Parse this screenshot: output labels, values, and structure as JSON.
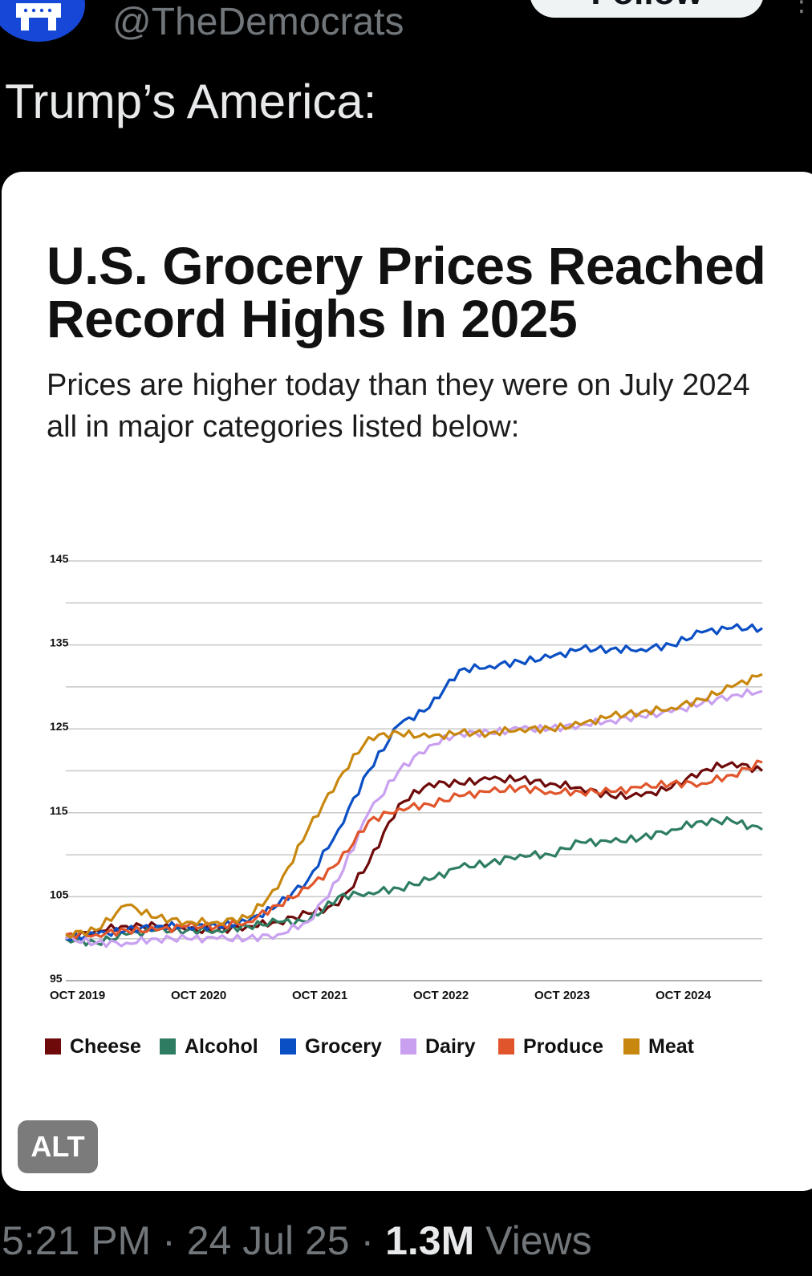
{
  "header": {
    "handle": "@TheDemocrats",
    "follow_label": "Follow",
    "more_icon": "more-dots-icon",
    "avatar_icon": "party-logo-icon",
    "avatar_color": "#1747d6"
  },
  "tweet": {
    "text": "Trump’s America:",
    "time": "5:21 PM",
    "separator": "·",
    "date": "24 Jul 25",
    "views_count": "1.3M",
    "views_label": "Views",
    "alt_badge": "ALT"
  },
  "chart_data": {
    "type": "line",
    "title": "U.S. Grocery Prices Reached Record Highs In 2025",
    "subtitle": "Prices are higher today than they were on July 2024 all in major categories listed below:",
    "x_ticks": [
      "OCT 2019",
      "OCT 2020",
      "OCT 2021",
      "OCT 2022",
      "OCT 2023",
      "OCT 2024"
    ],
    "y_ticks": [
      95,
      105,
      115,
      125,
      135,
      145
    ],
    "ylim": [
      95,
      145
    ],
    "xlim": [
      "2019-10",
      "2025-07"
    ],
    "grid": true,
    "legend_position": "bottom",
    "x": [
      "2019-10",
      "2020-01",
      "2020-04",
      "2020-07",
      "2020-10",
      "2021-01",
      "2021-04",
      "2021-07",
      "2021-10",
      "2022-01",
      "2022-04",
      "2022-07",
      "2022-10",
      "2023-01",
      "2023-04",
      "2023-07",
      "2023-10",
      "2024-01",
      "2024-04",
      "2024-07",
      "2024-10",
      "2025-01",
      "2025-04",
      "2025-07"
    ],
    "series": [
      {
        "name": "Cheese",
        "color": "#6e0a0a",
        "values": [
          100,
          101,
          101.5,
          101.5,
          101,
          101,
          101.5,
          102,
          103,
          104,
          109,
          116,
          118.5,
          118.5,
          119,
          119,
          118.5,
          118,
          117,
          117,
          118,
          120,
          121,
          120
        ]
      },
      {
        "name": "Alcohol",
        "color": "#2e7d62",
        "values": [
          100,
          99.5,
          100.5,
          101,
          101,
          101,
          101.5,
          102,
          102,
          105,
          105.5,
          106,
          107,
          108.5,
          109,
          110,
          110,
          111.5,
          111.5,
          112,
          113,
          114,
          114,
          113
        ]
      },
      {
        "name": "Grocery",
        "color": "#0a4fc4",
        "values": [
          100,
          100.5,
          101,
          101.5,
          101.5,
          101.5,
          102,
          104,
          107,
          113,
          120,
          125.5,
          127.5,
          132,
          132.5,
          133,
          133.5,
          134.5,
          134.5,
          134.5,
          135,
          136.5,
          137,
          137
        ]
      },
      {
        "name": "Dairy",
        "color": "#c9a0f0",
        "values": [
          100,
          99.5,
          99.5,
          100,
          100,
          100,
          100,
          100.5,
          102,
          107,
          115,
          120,
          123,
          124.5,
          124.5,
          125,
          125,
          125.5,
          126,
          126.5,
          127,
          128,
          129,
          129.5
        ]
      },
      {
        "name": "Produce",
        "color": "#e0552b",
        "values": [
          100.5,
          100.5,
          101,
          101,
          101.5,
          101.5,
          102,
          104,
          106,
          109,
          114,
          115.5,
          116,
          117,
          117.5,
          118,
          117.5,
          117.5,
          117.5,
          118,
          118.5,
          118.5,
          119.5,
          121
        ]
      },
      {
        "name": "Meat",
        "color": "#c8870e",
        "values": [
          100.5,
          101,
          104,
          102.5,
          102,
          102,
          102.5,
          106,
          113,
          119,
          124,
          124.5,
          124,
          124.5,
          124.5,
          125,
          125,
          125.5,
          126.5,
          127,
          127.5,
          128.5,
          130,
          131.5
        ]
      }
    ]
  }
}
